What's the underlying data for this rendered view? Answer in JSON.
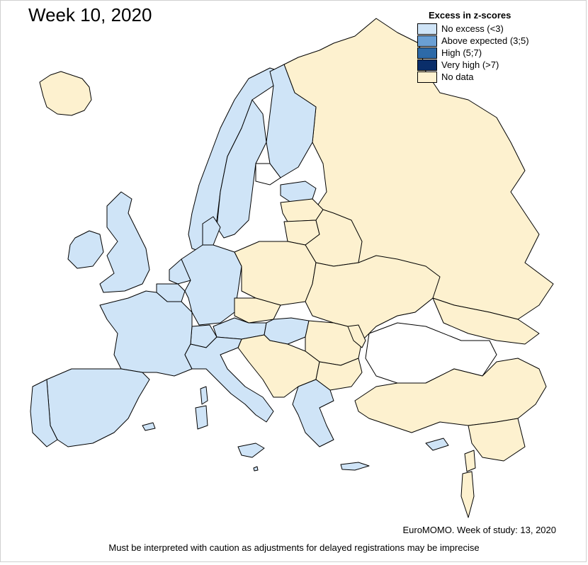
{
  "title": "Week 10, 2020",
  "legend": {
    "title": "Excess in z-scores",
    "items": [
      {
        "label": "No excess (<3)",
        "color": "#cfe4f7"
      },
      {
        "label": "Above expected (3;5)",
        "color": "#6a9fd4"
      },
      {
        "label": "High (5;7)",
        "color": "#2d6aa8"
      },
      {
        "label": "Very high (>7)",
        "color": "#0a2e6a"
      },
      {
        "label": "No data",
        "color": "#fdf1cf"
      }
    ]
  },
  "colors": {
    "no_excess": "#cfe4f7",
    "no_data": "#fdf1cf",
    "non_europe": "#ffffff",
    "border": "#000000"
  },
  "regions": [
    {
      "name": "Iceland",
      "category": "no_data"
    },
    {
      "name": "Norway",
      "category": "no_excess"
    },
    {
      "name": "Sweden",
      "category": "no_excess"
    },
    {
      "name": "Finland",
      "category": "no_excess"
    },
    {
      "name": "Russia",
      "category": "no_data"
    },
    {
      "name": "Estonia",
      "category": "no_excess"
    },
    {
      "name": "Latvia",
      "category": "no_data"
    },
    {
      "name": "Lithuania",
      "category": "no_data"
    },
    {
      "name": "Belarus",
      "category": "no_data"
    },
    {
      "name": "Ireland",
      "category": "no_excess"
    },
    {
      "name": "United Kingdom",
      "category": "no_excess"
    },
    {
      "name": "Denmark",
      "category": "no_excess"
    },
    {
      "name": "Netherlands",
      "category": "no_excess"
    },
    {
      "name": "Belgium",
      "category": "no_excess"
    },
    {
      "name": "Germany",
      "category": "no_excess"
    },
    {
      "name": "Poland",
      "category": "no_data"
    },
    {
      "name": "Ukraine",
      "category": "no_data"
    },
    {
      "name": "France",
      "category": "no_excess"
    },
    {
      "name": "Switzerland",
      "category": "no_excess"
    },
    {
      "name": "Austria",
      "category": "no_excess"
    },
    {
      "name": "Czechia",
      "category": "no_data"
    },
    {
      "name": "Hungary",
      "category": "no_excess"
    },
    {
      "name": "Romania",
      "category": "no_data"
    },
    {
      "name": "Moldova",
      "category": "no_data"
    },
    {
      "name": "Balkans",
      "category": "no_data"
    },
    {
      "name": "Bulgaria",
      "category": "no_data"
    },
    {
      "name": "Greece",
      "category": "no_excess"
    },
    {
      "name": "Italy",
      "category": "no_excess"
    },
    {
      "name": "Spain",
      "category": "no_excess"
    },
    {
      "name": "Portugal",
      "category": "no_excess"
    },
    {
      "name": "Turkey",
      "category": "no_data"
    },
    {
      "name": "Georgia",
      "category": "no_data"
    },
    {
      "name": "Syria",
      "category": "no_data"
    },
    {
      "name": "Lebanon",
      "category": "no_data"
    },
    {
      "name": "Israel",
      "category": "no_data"
    },
    {
      "name": "Cyprus",
      "category": "no_excess"
    },
    {
      "name": "Corsica",
      "category": "no_excess"
    },
    {
      "name": "Sardinia",
      "category": "no_excess"
    },
    {
      "name": "Sicily",
      "category": "no_excess"
    },
    {
      "name": "Crete",
      "category": "no_excess"
    },
    {
      "name": "Malta",
      "category": "no_excess"
    },
    {
      "name": "Balearic Islands",
      "category": "no_excess"
    }
  ],
  "source": "EuroMOMO. Week of study: 13, 2020",
  "note": "Must be interpreted with caution as adjustments for delayed registrations may be imprecise"
}
